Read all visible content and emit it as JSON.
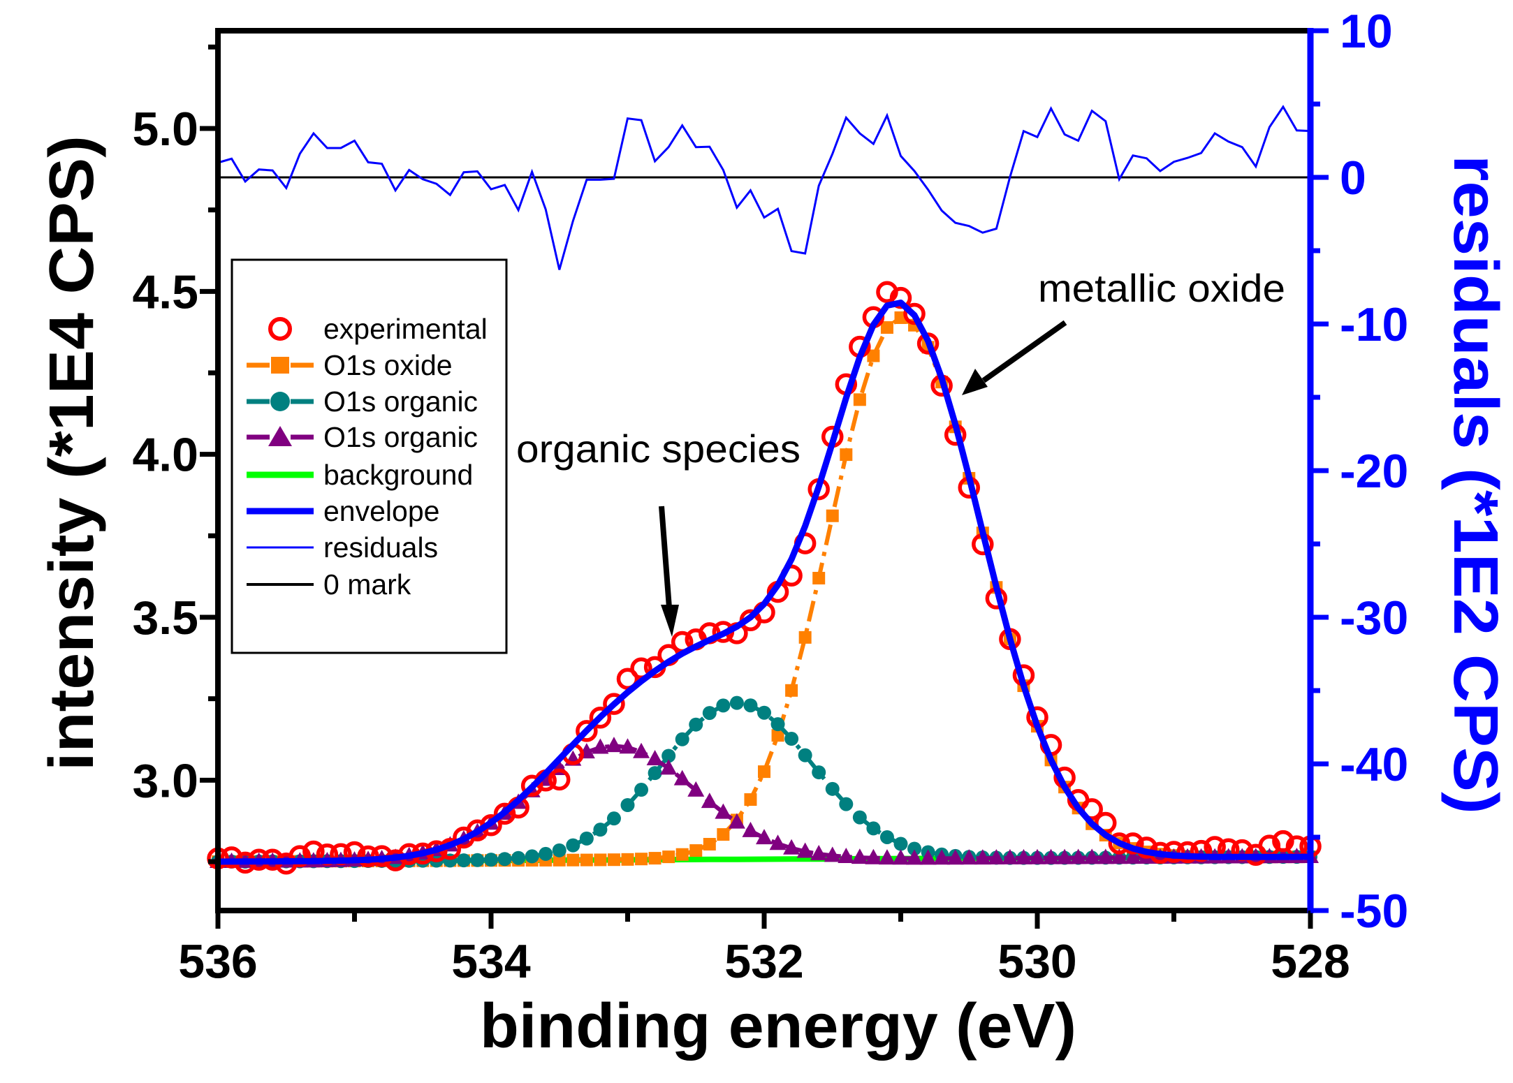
{
  "chart_data": {
    "type": "line",
    "title": "",
    "xlabel": "binding energy (eV)",
    "ylabel": "intensity (*1E4 CPS)",
    "y2label": "residuals (*1E2 CPS)",
    "xlim": [
      536,
      528
    ],
    "ylim": [
      2.6,
      5.3
    ],
    "y2lim": [
      -50,
      10
    ],
    "grid": false,
    "xticks": [
      536,
      534,
      532,
      530,
      528
    ],
    "xticklabels": [
      "536",
      "534",
      "532",
      "530",
      "528"
    ],
    "yticks": [
      3.0,
      3.5,
      4.0,
      4.5,
      5.0
    ],
    "yticklabels": [
      "3.0",
      "3.5",
      "4.0",
      "4.5",
      "5.0"
    ],
    "y2ticks": [
      -50,
      -40,
      -30,
      -20,
      -10,
      0,
      10
    ],
    "y2ticklabels": [
      "-50",
      "-40",
      "-30",
      "-20",
      "-10",
      "0",
      "10"
    ],
    "x": [
      536.0,
      535.9,
      535.8,
      535.7,
      535.6,
      535.5,
      535.4,
      535.3,
      535.2,
      535.1,
      535.0,
      534.9,
      534.8,
      534.7,
      534.6,
      534.5,
      534.4,
      534.3,
      534.2,
      534.1,
      534.0,
      533.9,
      533.8,
      533.7,
      533.6,
      533.5,
      533.4,
      533.3,
      533.2,
      533.1,
      533.0,
      532.9,
      532.8,
      532.7,
      532.6,
      532.5,
      532.4,
      532.3,
      532.2,
      532.1,
      532.0,
      531.9,
      531.8,
      531.7,
      531.6,
      531.5,
      531.4,
      531.3,
      531.2,
      531.1,
      531.0,
      530.9,
      530.8,
      530.7,
      530.6,
      530.5,
      530.4,
      530.3,
      530.2,
      530.1,
      530.0,
      529.9,
      529.8,
      529.7,
      529.6,
      529.5,
      529.4,
      529.3,
      529.2,
      529.1,
      529.0,
      528.9,
      528.8,
      528.7,
      528.6,
      528.5,
      528.4,
      528.3,
      528.2,
      528.1,
      528.0
    ],
    "series": [
      {
        "name": "experimental",
        "axis": "left",
        "color": "#ff0000",
        "values": [
          2.76,
          2.763,
          2.747,
          2.756,
          2.756,
          2.744,
          2.767,
          2.781,
          2.772,
          2.773,
          2.779,
          2.766,
          2.767,
          2.754,
          2.773,
          2.775,
          2.782,
          2.789,
          2.824,
          2.846,
          2.862,
          2.897,
          2.916,
          2.983,
          2.999,
          3.002,
          3.08,
          3.151,
          3.192,
          3.234,
          3.311,
          3.343,
          3.347,
          3.384,
          3.424,
          3.432,
          3.451,
          3.455,
          3.451,
          3.491,
          3.515,
          3.578,
          3.628,
          3.727,
          3.893,
          4.054,
          4.215,
          4.33,
          4.421,
          4.498,
          4.48,
          4.431,
          4.34,
          4.211,
          4.06,
          3.898,
          3.724,
          3.558,
          3.433,
          3.322,
          3.193,
          3.108,
          3.008,
          2.939,
          2.911,
          2.869,
          2.806,
          2.806,
          2.793,
          2.777,
          2.78,
          2.779,
          2.783,
          2.795,
          2.788,
          2.785,
          2.771,
          2.799,
          2.813,
          2.797,
          2.797
        ]
      },
      {
        "name": "residuals",
        "axis": "right",
        "color": "#0000ff",
        "values": [
          1.0,
          1.27,
          -0.28,
          0.54,
          0.47,
          -0.73,
          1.61,
          3.0,
          2.0,
          2.0,
          2.5,
          1.03,
          0.93,
          -0.89,
          0.5,
          -0.13,
          -0.44,
          -1.2,
          0.35,
          0.41,
          -0.81,
          -0.52,
          -2.23,
          0.38,
          -2.18,
          -6.3,
          -2.97,
          -0.16,
          -0.16,
          -0.1,
          4.02,
          3.9,
          1.1,
          2.06,
          3.54,
          2.06,
          2.09,
          0.5,
          -2.06,
          -0.89,
          -2.74,
          -2.15,
          -5.03,
          -5.19,
          -0.57,
          1.61,
          4.07,
          3.0,
          2.28,
          4.22,
          1.46,
          0.43,
          -0.84,
          -2.26,
          -3.1,
          -3.32,
          -3.77,
          -3.5,
          0.03,
          3.15,
          2.75,
          4.7,
          2.93,
          2.5,
          4.54,
          3.83,
          -0.13,
          1.49,
          1.3,
          0.43,
          1.06,
          1.33,
          1.66,
          3.0,
          2.44,
          2.06,
          0.74,
          3.43,
          4.81,
          3.2,
          3.16
        ]
      }
    ],
    "fit_components": [
      {
        "name": "O1s oxide",
        "color": "#ff8000",
        "marker": "square",
        "center": 531.0,
        "height": 1.66,
        "sigma_left": 0.524,
        "sigma_right": 0.595
      },
      {
        "name": "O1s organic",
        "color": "#008080",
        "marker": "circle",
        "center": 532.2,
        "height": 0.48,
        "sigma_left": 0.552,
        "sigma_right": 0.552
      },
      {
        "name": "O1s organic",
        "color": "#800080",
        "marker": "triangle",
        "center": 533.1,
        "height": 0.35,
        "sigma_left": 0.6,
        "sigma_right": 0.6
      }
    ],
    "background": {
      "name": "background",
      "color": "#00ff00",
      "start": [
        536,
        2.75
      ],
      "end": [
        528,
        2.765
      ]
    },
    "envelope": {
      "name": "envelope",
      "color": "#0000ff",
      "definition": "background + sum of fit components"
    },
    "zero_mark": {
      "name": "0 mark",
      "color": "#000000",
      "value": 0
    },
    "annotations": [
      {
        "text": "organic species",
        "points_to_x": 532.7
      },
      {
        "text": "metallic oxide",
        "points_to_x": 530.6
      }
    ],
    "legend": {
      "placement": "upper-left",
      "entries": [
        {
          "label": "experimental",
          "color": "#ff0000",
          "style": "open-circle"
        },
        {
          "label": "O1s oxide",
          "color": "#ff8000",
          "style": "dash-square"
        },
        {
          "label": "O1s organic",
          "color": "#008080",
          "style": "dash-circle"
        },
        {
          "label": "O1s organic",
          "color": "#800080",
          "style": "dash-triangle"
        },
        {
          "label": "background",
          "color": "#00ff00",
          "style": "thick-line"
        },
        {
          "label": "envelope",
          "color": "#0000ff",
          "style": "thick-line"
        },
        {
          "label": "residuals",
          "color": "#0000ff",
          "style": "thin-line"
        },
        {
          "label": "0 mark",
          "color": "#000000",
          "style": "thin-line"
        }
      ]
    }
  }
}
